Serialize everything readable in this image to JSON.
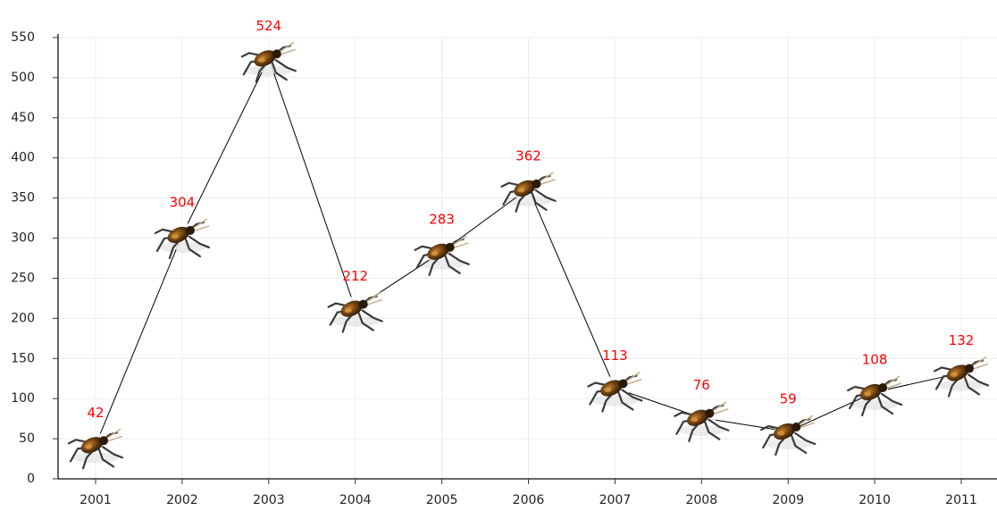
{
  "chart_data": {
    "type": "line",
    "categories": [
      "2001",
      "2002",
      "2003",
      "2004",
      "2005",
      "2006",
      "2007",
      "2008",
      "2009",
      "2010",
      "2011"
    ],
    "series": [
      {
        "color": "#000000",
        "values": [
          42,
          304,
          524,
          212,
          283,
          362,
          113,
          76,
          59,
          108,
          132
        ]
      }
    ],
    "ylim": [
      0,
      550
    ],
    "yticks": [
      0,
      50,
      100,
      150,
      200,
      250,
      300,
      350,
      400,
      450,
      500,
      550
    ],
    "grid": true
  }
}
